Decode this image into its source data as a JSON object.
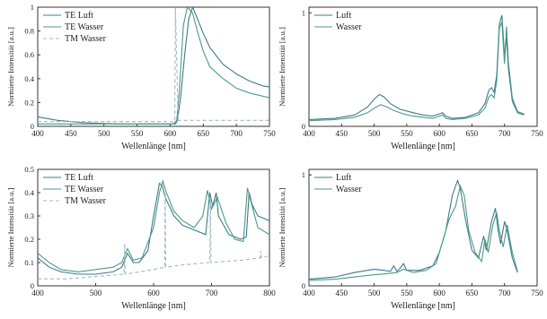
{
  "colors": {
    "series_1": "#3c7a8c",
    "series_2": "#4c9a86",
    "series_3": "#9bbac0",
    "axis": "#333333"
  },
  "chart_data": [
    {
      "type": "line",
      "xlabel": "Wellenlänge [nm]",
      "ylabel": "Normierte Intensität [a.u.]",
      "xlim": [
        400,
        750
      ],
      "ylim": [
        0,
        1
      ],
      "x_ticks": [
        400,
        450,
        500,
        550,
        600,
        650,
        700,
        750
      ],
      "y_ticks": [
        0,
        0.2,
        0.4,
        0.6,
        0.8,
        1
      ],
      "y_tick_labels": [
        "0",
        "0.2",
        "0.4",
        "0.6",
        "0.8",
        "1"
      ],
      "legend_position": "top-left",
      "series": [
        {
          "name": "TE Luft",
          "style": "solid",
          "x": [
            400,
            430,
            470,
            520,
            580,
            608,
            611,
            616,
            622,
            628,
            634,
            640,
            650,
            660,
            680,
            700,
            720,
            740,
            750
          ],
          "y": [
            0.08,
            0.05,
            0.03,
            0.02,
            0.02,
            0.02,
            0.05,
            0.25,
            0.6,
            0.9,
            1.0,
            0.92,
            0.78,
            0.66,
            0.52,
            0.44,
            0.38,
            0.34,
            0.33
          ]
        },
        {
          "name": "TE Wasser",
          "style": "solid",
          "x": [
            400,
            450,
            500,
            550,
            605,
            610,
            614,
            620,
            626,
            634,
            640,
            650,
            660,
            680,
            700,
            720,
            750
          ],
          "y": [
            0.02,
            0.02,
            0.02,
            0.02,
            0.02,
            0.05,
            0.3,
            0.85,
            1.0,
            0.95,
            0.82,
            0.63,
            0.5,
            0.4,
            0.32,
            0.28,
            0.24
          ]
        },
        {
          "name": "TM Wasser",
          "style": "dashed",
          "x": [
            400,
            500,
            600,
            607,
            608,
            612,
            650,
            700,
            750
          ],
          "y": [
            0.04,
            0.04,
            0.04,
            0.04,
            1.0,
            0.05,
            0.05,
            0.05,
            0.05
          ]
        }
      ]
    },
    {
      "type": "line",
      "xlabel": "Wellenlänge [nm]",
      "ylabel": "Normierte Intensität [a.u.]",
      "xlim": [
        400,
        750
      ],
      "ylim": [
        0,
        1.05
      ],
      "x_ticks": [
        400,
        450,
        500,
        550,
        600,
        650,
        700,
        750
      ],
      "y_ticks": [
        0,
        1
      ],
      "y_tick_labels": [
        "0",
        "1"
      ],
      "legend_position": "top-left",
      "series": [
        {
          "name": "Luft",
          "style": "solid",
          "x": [
            400,
            440,
            470,
            490,
            500,
            508,
            515,
            525,
            540,
            560,
            575,
            590,
            600,
            605,
            610,
            620,
            640,
            660,
            670,
            676,
            680,
            684,
            688,
            692,
            696,
            700,
            703,
            706,
            712,
            720,
            730
          ],
          "y": [
            0.06,
            0.07,
            0.1,
            0.17,
            0.24,
            0.28,
            0.26,
            0.2,
            0.15,
            0.12,
            0.1,
            0.09,
            0.11,
            0.12,
            0.09,
            0.07,
            0.08,
            0.12,
            0.2,
            0.32,
            0.34,
            0.3,
            0.45,
            0.9,
            0.98,
            0.62,
            0.78,
            0.5,
            0.22,
            0.12,
            0.1
          ]
        },
        {
          "name": "Wasser",
          "style": "solid",
          "x": [
            400,
            440,
            470,
            490,
            500,
            510,
            520,
            530,
            545,
            560,
            575,
            590,
            600,
            605,
            610,
            620,
            640,
            660,
            670,
            676,
            680,
            684,
            688,
            692,
            696,
            700,
            703,
            706,
            712,
            720,
            730
          ],
          "y": [
            0.05,
            0.06,
            0.08,
            0.12,
            0.16,
            0.19,
            0.17,
            0.14,
            0.11,
            0.09,
            0.08,
            0.07,
            0.09,
            0.1,
            0.07,
            0.06,
            0.07,
            0.1,
            0.16,
            0.26,
            0.28,
            0.25,
            0.4,
            0.86,
            0.92,
            0.55,
            0.88,
            0.56,
            0.25,
            0.13,
            0.11
          ]
        }
      ]
    },
    {
      "type": "line",
      "xlabel": "Wellenlänge [nm]",
      "ylabel": "Normierte Intensität [a.u.]",
      "xlim": [
        400,
        800
      ],
      "ylim": [
        0,
        0.5
      ],
      "x_ticks": [
        400,
        500,
        600,
        700,
        800
      ],
      "y_ticks": [
        0,
        0.1,
        0.2,
        0.3,
        0.4,
        0.5
      ],
      "y_tick_labels": [
        "0",
        "0.1",
        "0.2",
        "0.3",
        "0.4",
        "0.5"
      ],
      "legend_position": "top-left",
      "series": [
        {
          "name": "TE Luft",
          "style": "solid",
          "x": [
            400,
            420,
            440,
            470,
            500,
            530,
            545,
            555,
            565,
            575,
            590,
            600,
            610,
            615,
            620,
            635,
            650,
            670,
            690,
            697,
            702,
            708,
            712,
            730,
            750,
            760,
            765,
            770,
            780,
            800
          ],
          "y": [
            0.12,
            0.08,
            0.06,
            0.05,
            0.05,
            0.06,
            0.08,
            0.14,
            0.1,
            0.1,
            0.15,
            0.3,
            0.44,
            0.43,
            0.38,
            0.3,
            0.26,
            0.24,
            0.22,
            0.4,
            0.34,
            0.4,
            0.3,
            0.22,
            0.2,
            0.21,
            0.4,
            0.35,
            0.3,
            0.28
          ]
        },
        {
          "name": "TE Wasser",
          "style": "solid",
          "x": [
            400,
            420,
            440,
            470,
            500,
            530,
            545,
            555,
            565,
            580,
            600,
            610,
            616,
            622,
            635,
            650,
            670,
            685,
            693,
            700,
            710,
            725,
            740,
            755,
            762,
            768,
            780,
            800
          ],
          "y": [
            0.14,
            0.1,
            0.07,
            0.06,
            0.07,
            0.08,
            0.1,
            0.16,
            0.11,
            0.12,
            0.25,
            0.4,
            0.45,
            0.4,
            0.32,
            0.28,
            0.25,
            0.3,
            0.41,
            0.33,
            0.38,
            0.27,
            0.2,
            0.19,
            0.42,
            0.36,
            0.25,
            0.22
          ]
        },
        {
          "name": "TM Wasser",
          "style": "dashed",
          "x": [
            400,
            450,
            500,
            549,
            550,
            551,
            600,
            619,
            620,
            621,
            650,
            697,
            698,
            699,
            750,
            784,
            785,
            786,
            800
          ],
          "y": [
            0.03,
            0.03,
            0.04,
            0.05,
            0.18,
            0.05,
            0.07,
            0.08,
            0.4,
            0.08,
            0.09,
            0.1,
            0.38,
            0.1,
            0.11,
            0.12,
            0.15,
            0.12,
            0.13
          ]
        }
      ]
    },
    {
      "type": "line",
      "xlabel": "Wellenlänge [nm]",
      "ylabel": "Normierte Intensität [a.u.]",
      "xlim": [
        400,
        750
      ],
      "ylim": [
        0,
        1.05
      ],
      "x_ticks": [
        400,
        450,
        500,
        550,
        600,
        650,
        700,
        750
      ],
      "y_ticks": [
        0,
        1
      ],
      "y_tick_labels": [
        "0",
        "1"
      ],
      "legend_position": "top-left",
      "series": [
        {
          "name": "Luft",
          "style": "solid",
          "x": [
            400,
            440,
            470,
            500,
            515,
            525,
            530,
            535,
            540,
            545,
            550,
            570,
            590,
            600,
            610,
            620,
            628,
            632,
            640,
            650,
            660,
            668,
            672,
            680,
            686,
            690,
            694,
            700,
            704,
            712,
            720
          ],
          "y": [
            0.06,
            0.08,
            0.12,
            0.15,
            0.14,
            0.13,
            0.18,
            0.13,
            0.16,
            0.2,
            0.14,
            0.14,
            0.18,
            0.3,
            0.5,
            0.82,
            0.95,
            0.88,
            0.6,
            0.32,
            0.25,
            0.45,
            0.32,
            0.58,
            0.7,
            0.5,
            0.38,
            0.58,
            0.5,
            0.25,
            0.12
          ]
        },
        {
          "name": "Wasser",
          "style": "solid",
          "x": [
            400,
            440,
            470,
            500,
            520,
            535,
            545,
            560,
            580,
            595,
            605,
            615,
            625,
            632,
            638,
            645,
            655,
            665,
            670,
            675,
            682,
            688,
            692,
            698,
            704,
            712,
            720
          ],
          "y": [
            0.05,
            0.06,
            0.08,
            0.1,
            0.11,
            0.12,
            0.15,
            0.12,
            0.14,
            0.2,
            0.4,
            0.6,
            0.72,
            0.9,
            0.82,
            0.5,
            0.3,
            0.22,
            0.42,
            0.3,
            0.55,
            0.66,
            0.5,
            0.35,
            0.55,
            0.3,
            0.13
          ]
        }
      ]
    }
  ]
}
